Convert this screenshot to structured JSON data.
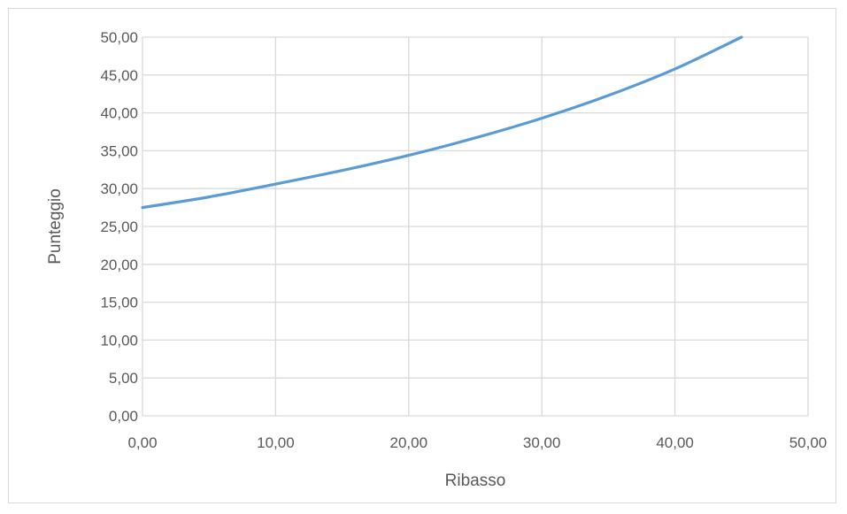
{
  "chart_data": {
    "type": "line",
    "title": "",
    "xlabel": "Ribasso",
    "ylabel": "Punteggio",
    "xlim": [
      0,
      50
    ],
    "ylim": [
      0,
      50
    ],
    "x_ticks": [
      "0,00",
      "10,00",
      "20,00",
      "30,00",
      "40,00",
      "50,00"
    ],
    "y_ticks": [
      "0,00",
      "5,00",
      "10,00",
      "15,00",
      "20,00",
      "25,00",
      "30,00",
      "35,00",
      "40,00",
      "45,00",
      "50,00"
    ],
    "grid": true,
    "legend": "none",
    "colors": {
      "series": "#5b9bd5",
      "grid": "#d9d9d9",
      "text": "#595959",
      "border": "#d9d9d9"
    },
    "series": [
      {
        "x": [
          0,
          5,
          10,
          15,
          20,
          25,
          30,
          35,
          40,
          45
        ],
        "y": [
          27.5,
          28.9,
          30.6,
          32.4,
          34.4,
          36.7,
          39.3,
          42.3,
          45.8,
          50.0
        ]
      }
    ]
  }
}
